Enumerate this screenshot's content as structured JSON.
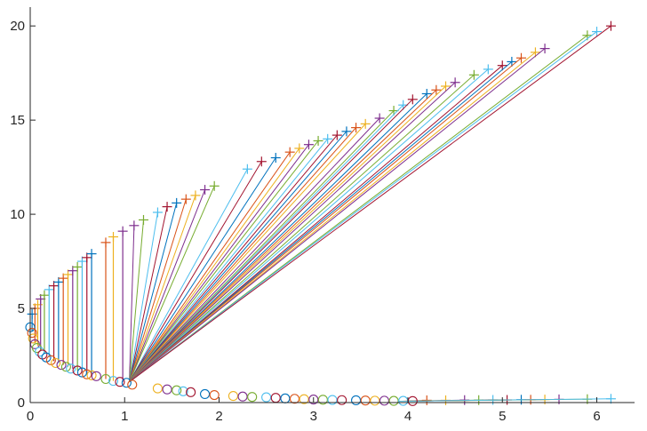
{
  "chart_data": {
    "type": "scatter",
    "title": "",
    "xlabel": "",
    "ylabel": "",
    "xlim": [
      0,
      6.4
    ],
    "ylim": [
      0,
      21
    ],
    "xticks": [
      0,
      1,
      2,
      3,
      4,
      5,
      6
    ],
    "yticks": [
      0,
      5,
      10,
      15,
      20
    ],
    "xtick_labels": [
      "0",
      "1",
      "2",
      "3",
      "4",
      "5",
      "6"
    ],
    "ytick_labels": [
      "0",
      "5",
      "10",
      "15",
      "20"
    ],
    "grid": false,
    "legend": "none",
    "hub": [
      1.05,
      1.1
    ],
    "markers": {
      "cross": "+",
      "circle": "o"
    },
    "palette": [
      "#0072BD",
      "#D95319",
      "#EDB120",
      "#7E2F8E",
      "#77AC30",
      "#4DBEEE",
      "#A2142F"
    ],
    "vertical_links": [
      {
        "x": 0.02,
        "y_low": 3.8,
        "y_high": 4.7
      },
      {
        "x": 0.05,
        "y_low": 3.2,
        "y_high": 5.0
      },
      {
        "x": 0.08,
        "y_low": 3.0,
        "y_high": 5.2
      },
      {
        "x": 0.11,
        "y_low": 2.8,
        "y_high": 5.5
      },
      {
        "x": 0.15,
        "y_low": 2.6,
        "y_high": 5.7
      },
      {
        "x": 0.2,
        "y_low": 2.4,
        "y_high": 6.0
      },
      {
        "x": 0.25,
        "y_low": 2.2,
        "y_high": 6.2
      },
      {
        "x": 0.3,
        "y_low": 2.1,
        "y_high": 6.4
      },
      {
        "x": 0.35,
        "y_low": 2.0,
        "y_high": 6.6
      },
      {
        "x": 0.4,
        "y_low": 1.9,
        "y_high": 6.8
      },
      {
        "x": 0.45,
        "y_low": 1.8,
        "y_high": 7.0
      },
      {
        "x": 0.5,
        "y_low": 1.7,
        "y_high": 7.2
      },
      {
        "x": 0.55,
        "y_low": 1.6,
        "y_high": 7.5
      },
      {
        "x": 0.6,
        "y_low": 1.5,
        "y_high": 7.7
      },
      {
        "x": 0.65,
        "y_low": 1.45,
        "y_high": 7.9
      },
      {
        "x": 0.8,
        "y_low": 1.25,
        "y_high": 8.5
      },
      {
        "x": 0.88,
        "y_low": 1.15,
        "y_high": 8.8
      },
      {
        "x": 0.98,
        "y_low": 1.1,
        "y_high": 9.1
      }
    ],
    "fan_targets": [
      [
        1.1,
        9.4
      ],
      [
        1.2,
        9.7
      ],
      [
        1.35,
        10.1
      ],
      [
        1.45,
        10.4
      ],
      [
        1.55,
        10.6
      ],
      [
        1.65,
        10.8
      ],
      [
        1.75,
        11.0
      ],
      [
        1.85,
        11.3
      ],
      [
        1.95,
        11.5
      ],
      [
        2.3,
        12.4
      ],
      [
        2.45,
        12.8
      ],
      [
        2.6,
        13.0
      ],
      [
        2.75,
        13.3
      ],
      [
        2.85,
        13.5
      ],
      [
        2.95,
        13.7
      ],
      [
        3.05,
        13.9
      ],
      [
        3.15,
        14.0
      ],
      [
        3.25,
        14.2
      ],
      [
        3.35,
        14.4
      ],
      [
        3.45,
        14.6
      ],
      [
        3.55,
        14.8
      ],
      [
        3.7,
        15.1
      ],
      [
        3.85,
        15.5
      ],
      [
        3.95,
        15.8
      ],
      [
        4.05,
        16.1
      ],
      [
        4.2,
        16.4
      ],
      [
        4.3,
        16.6
      ],
      [
        4.4,
        16.8
      ],
      [
        4.5,
        17.0
      ],
      [
        4.7,
        17.4
      ],
      [
        4.85,
        17.7
      ],
      [
        5.0,
        17.9
      ],
      [
        5.1,
        18.1
      ],
      [
        5.2,
        18.3
      ],
      [
        5.35,
        18.6
      ],
      [
        5.45,
        18.8
      ],
      [
        5.9,
        19.5
      ],
      [
        6.0,
        19.7
      ],
      [
        6.15,
        20.0
      ]
    ],
    "circles": [
      [
        0.0,
        4.0
      ],
      [
        0.02,
        3.7
      ],
      [
        0.03,
        3.4
      ],
      [
        0.05,
        3.1
      ],
      [
        0.07,
        2.9
      ],
      [
        0.1,
        2.7
      ],
      [
        0.13,
        2.55
      ],
      [
        0.17,
        2.4
      ],
      [
        0.22,
        2.25
      ],
      [
        0.27,
        2.1
      ],
      [
        0.33,
        2.0
      ],
      [
        0.38,
        1.9
      ],
      [
        0.43,
        1.8
      ],
      [
        0.5,
        1.7
      ],
      [
        0.55,
        1.6
      ],
      [
        0.6,
        1.5
      ],
      [
        0.65,
        1.45
      ],
      [
        0.7,
        1.4
      ],
      [
        0.8,
        1.25
      ],
      [
        0.88,
        1.15
      ],
      [
        0.95,
        1.1
      ],
      [
        1.02,
        1.05
      ],
      [
        1.08,
        0.95
      ],
      [
        1.35,
        0.75
      ],
      [
        1.45,
        0.7
      ],
      [
        1.55,
        0.65
      ],
      [
        1.62,
        0.6
      ],
      [
        1.7,
        0.55
      ],
      [
        1.85,
        0.45
      ],
      [
        1.95,
        0.4
      ],
      [
        2.15,
        0.35
      ],
      [
        2.25,
        0.32
      ],
      [
        2.35,
        0.3
      ],
      [
        2.5,
        0.28
      ],
      [
        2.6,
        0.25
      ],
      [
        2.7,
        0.22
      ],
      [
        2.8,
        0.2
      ],
      [
        2.9,
        0.18
      ],
      [
        3.0,
        0.16
      ],
      [
        3.1,
        0.15
      ],
      [
        3.2,
        0.14
      ],
      [
        3.3,
        0.13
      ],
      [
        3.45,
        0.12
      ],
      [
        3.55,
        0.11
      ],
      [
        3.65,
        0.1
      ],
      [
        3.75,
        0.1
      ],
      [
        3.85,
        0.09
      ],
      [
        3.95,
        0.09
      ],
      [
        4.05,
        0.08
      ]
    ],
    "bottom_crosses": [
      [
        4.2,
        0.12
      ],
      [
        4.4,
        0.12
      ],
      [
        4.6,
        0.13
      ],
      [
        4.75,
        0.13
      ],
      [
        4.9,
        0.14
      ],
      [
        5.05,
        0.14
      ],
      [
        5.2,
        0.15
      ],
      [
        5.3,
        0.15
      ],
      [
        5.45,
        0.16
      ],
      [
        5.6,
        0.17
      ],
      [
        5.9,
        0.18
      ],
      [
        6.15,
        0.2
      ]
    ]
  }
}
